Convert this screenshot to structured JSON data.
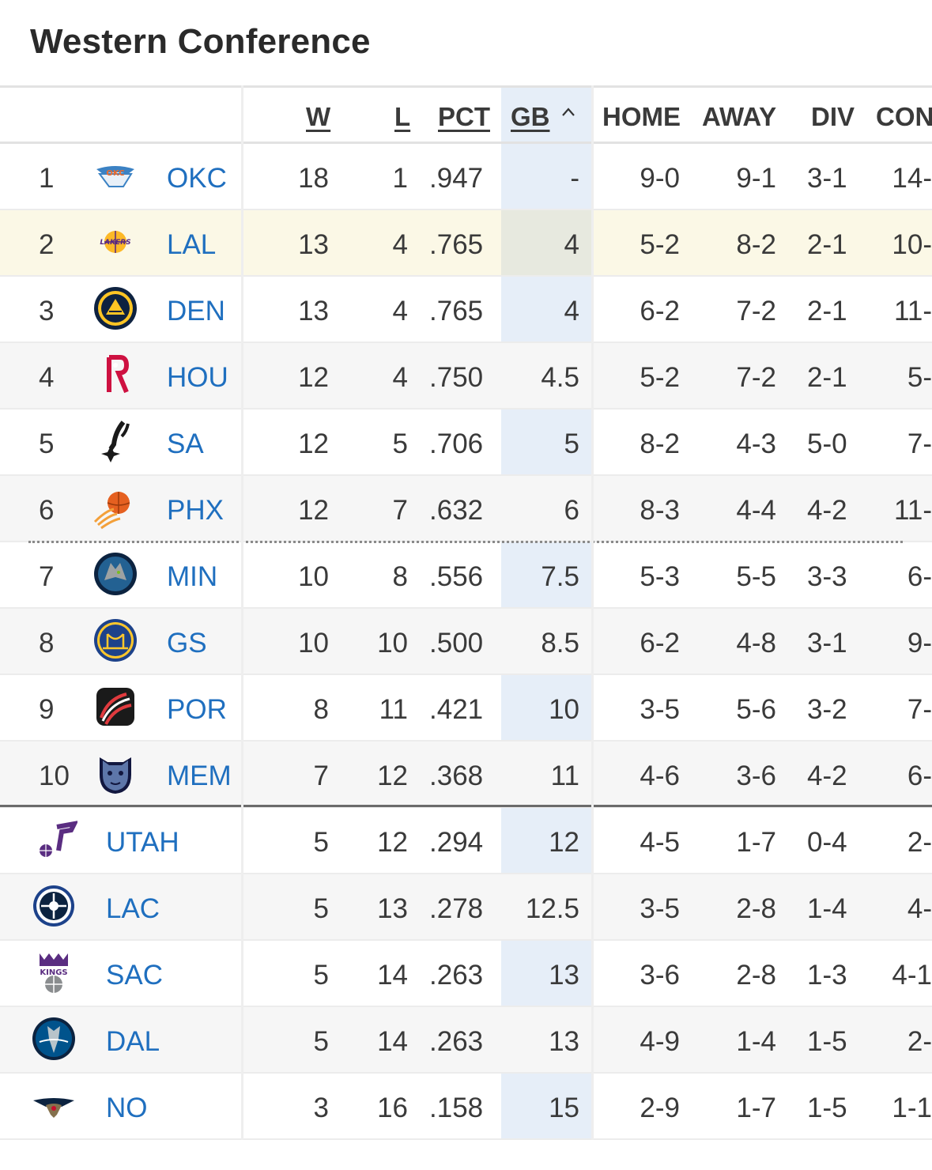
{
  "page_title": "Western Conference",
  "columns": {
    "w": "W",
    "l": "L",
    "pct": "PCT",
    "gb": "GB",
    "home": "HOME",
    "away": "AWAY",
    "div": "DIV",
    "conf": "CON"
  },
  "colors": {
    "link": "#1f6fbf",
    "gb_column": "#e6eef8",
    "highlight_row": "#fbf8e6"
  },
  "sort": {
    "column": "GB",
    "direction": "ascending",
    "icon": "chevron-up-icon"
  },
  "rows": [
    {
      "rank": "1",
      "abbr": "OKC",
      "logo": "thunder-logo-icon",
      "w": "18",
      "l": "1",
      "pct": ".947",
      "gb": "-",
      "home": "9-0",
      "away": "9-1",
      "div": "3-1",
      "conf": "14-"
    },
    {
      "rank": "2",
      "abbr": "LAL",
      "logo": "lakers-logo-icon",
      "w": "13",
      "l": "4",
      "pct": ".765",
      "gb": "4",
      "home": "5-2",
      "away": "8-2",
      "div": "2-1",
      "conf": "10-"
    },
    {
      "rank": "3",
      "abbr": "DEN",
      "logo": "nuggets-logo-icon",
      "w": "13",
      "l": "4",
      "pct": ".765",
      "gb": "4",
      "home": "6-2",
      "away": "7-2",
      "div": "2-1",
      "conf": "11-"
    },
    {
      "rank": "4",
      "abbr": "HOU",
      "logo": "rockets-logo-icon",
      "w": "12",
      "l": "4",
      "pct": ".750",
      "gb": "4.5",
      "home": "5-2",
      "away": "7-2",
      "div": "2-1",
      "conf": "5-"
    },
    {
      "rank": "5",
      "abbr": "SA",
      "logo": "spurs-logo-icon",
      "w": "12",
      "l": "5",
      "pct": ".706",
      "gb": "5",
      "home": "8-2",
      "away": "4-3",
      "div": "5-0",
      "conf": "7-"
    },
    {
      "rank": "6",
      "abbr": "PHX",
      "logo": "suns-logo-icon",
      "w": "12",
      "l": "7",
      "pct": ".632",
      "gb": "6",
      "home": "8-3",
      "away": "4-4",
      "div": "4-2",
      "conf": "11-"
    },
    {
      "rank": "7",
      "abbr": "MIN",
      "logo": "timberwolves-logo-icon",
      "w": "10",
      "l": "8",
      "pct": ".556",
      "gb": "7.5",
      "home": "5-3",
      "away": "5-5",
      "div": "3-3",
      "conf": "6-"
    },
    {
      "rank": "8",
      "abbr": "GS",
      "logo": "warriors-logo-icon",
      "w": "10",
      "l": "10",
      "pct": ".500",
      "gb": "8.5",
      "home": "6-2",
      "away": "4-8",
      "div": "3-1",
      "conf": "9-"
    },
    {
      "rank": "9",
      "abbr": "POR",
      "logo": "blazers-logo-icon",
      "w": "8",
      "l": "11",
      "pct": ".421",
      "gb": "10",
      "home": "3-5",
      "away": "5-6",
      "div": "3-2",
      "conf": "7-"
    },
    {
      "rank": "10",
      "abbr": "MEM",
      "logo": "grizzlies-logo-icon",
      "w": "7",
      "l": "12",
      "pct": ".368",
      "gb": "11",
      "home": "4-6",
      "away": "3-6",
      "div": "4-2",
      "conf": "6-"
    },
    {
      "rank": "",
      "abbr": "UTAH",
      "logo": "jazz-logo-icon",
      "w": "5",
      "l": "12",
      "pct": ".294",
      "gb": "12",
      "home": "4-5",
      "away": "1-7",
      "div": "0-4",
      "conf": "2-"
    },
    {
      "rank": "",
      "abbr": "LAC",
      "logo": "clippers-logo-icon",
      "w": "5",
      "l": "13",
      "pct": ".278",
      "gb": "12.5",
      "home": "3-5",
      "away": "2-8",
      "div": "1-4",
      "conf": "4-"
    },
    {
      "rank": "",
      "abbr": "SAC",
      "logo": "kings-logo-icon",
      "w": "5",
      "l": "14",
      "pct": ".263",
      "gb": "13",
      "home": "3-6",
      "away": "2-8",
      "div": "1-3",
      "conf": "4-1"
    },
    {
      "rank": "",
      "abbr": "DAL",
      "logo": "mavericks-logo-icon",
      "w": "5",
      "l": "14",
      "pct": ".263",
      "gb": "13",
      "home": "4-9",
      "away": "1-4",
      "div": "1-5",
      "conf": "2-"
    },
    {
      "rank": "",
      "abbr": "NO",
      "logo": "pelicans-logo-icon",
      "w": "3",
      "l": "16",
      "pct": ".158",
      "gb": "15",
      "home": "2-9",
      "away": "1-7",
      "div": "1-5",
      "conf": "1-1"
    }
  ]
}
